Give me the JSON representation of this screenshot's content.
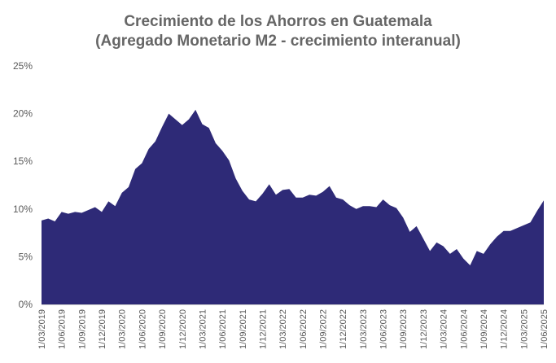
{
  "chart_data": {
    "type": "area",
    "title": "Crecimiento de los Ahorros en Guatemala",
    "subtitle": "(Agregado Monetario M2 - crecimiento interanual)",
    "xlabel": "",
    "ylabel": "",
    "ylim": [
      0,
      25
    ],
    "y_ticks": [
      "0%",
      "5%",
      "10%",
      "15%",
      "20%",
      "25%"
    ],
    "x_ticks": [
      "1/03/2019",
      "1/06/2019",
      "1/09/2019",
      "1/12/2019",
      "1/03/2020",
      "1/06/2020",
      "1/09/2020",
      "1/12/2020",
      "1/03/2021",
      "1/06/2021",
      "1/09/2021",
      "1/12/2021",
      "1/03/2022",
      "1/06/2022",
      "1/09/2022",
      "1/12/2022",
      "1/03/2023",
      "1/06/2023",
      "1/09/2023",
      "1/12/2023",
      "1/03/2024",
      "1/06/2024",
      "1/09/2024",
      "1/12/2024",
      "1/03/2025",
      "1/06/2025"
    ],
    "grid": false,
    "legend": "none",
    "color": "#2e2a77",
    "series": [
      {
        "x": [
          "2019-03",
          "2019-04",
          "2019-05",
          "2019-06",
          "2019-07",
          "2019-08",
          "2019-09",
          "2019-10",
          "2019-11",
          "2019-12",
          "2020-01",
          "2020-02",
          "2020-03",
          "2020-04",
          "2020-05",
          "2020-06",
          "2020-07",
          "2020-08",
          "2020-09",
          "2020-10",
          "2020-11",
          "2020-12",
          "2021-01",
          "2021-02",
          "2021-03",
          "2021-04",
          "2021-05",
          "2021-06",
          "2021-07",
          "2021-08",
          "2021-09",
          "2021-10",
          "2021-11",
          "2021-12",
          "2022-01",
          "2022-02",
          "2022-03",
          "2022-04",
          "2022-05",
          "2022-06",
          "2022-07",
          "2022-08",
          "2022-09",
          "2022-10",
          "2022-11",
          "2022-12",
          "2023-01",
          "2023-02",
          "2023-03",
          "2023-04",
          "2023-05",
          "2023-06",
          "2023-07",
          "2023-08",
          "2023-09",
          "2023-10",
          "2023-11",
          "2023-12",
          "2024-01",
          "2024-02",
          "2024-03",
          "2024-04",
          "2024-05",
          "2024-06",
          "2024-07",
          "2024-08",
          "2024-09",
          "2024-10",
          "2024-11",
          "2024-12",
          "2025-01",
          "2025-02",
          "2025-03",
          "2025-04",
          "2025-05",
          "2025-06"
        ],
        "values": [
          8.8,
          9.0,
          8.7,
          9.7,
          9.5,
          9.7,
          9.6,
          9.9,
          10.2,
          9.7,
          10.8,
          10.3,
          11.7,
          12.3,
          14.2,
          14.8,
          16.3,
          17.1,
          18.6,
          20.0,
          19.4,
          18.8,
          19.4,
          20.4,
          18.9,
          18.5,
          16.9,
          16.1,
          15.1,
          13.2,
          11.9,
          11.0,
          10.8,
          11.6,
          12.6,
          11.5,
          12.0,
          12.1,
          11.2,
          11.2,
          11.5,
          11.4,
          11.8,
          12.4,
          11.2,
          11.0,
          10.4,
          10.0,
          10.3,
          10.3,
          10.2,
          11.0,
          10.4,
          10.1,
          9.1,
          7.6,
          8.2,
          6.9,
          5.6,
          6.5,
          6.1,
          5.3,
          5.8,
          4.8,
          4.1,
          5.6,
          5.3,
          6.3,
          7.1,
          7.7,
          7.7,
          8.0,
          8.3,
          8.6,
          9.8,
          10.9
        ]
      }
    ]
  }
}
